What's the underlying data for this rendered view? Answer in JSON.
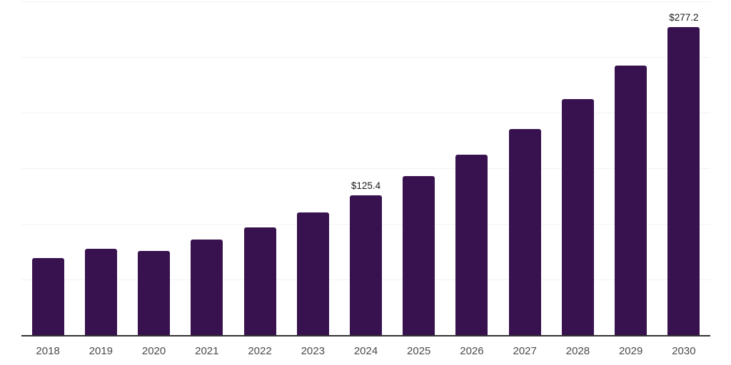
{
  "chart_data": {
    "type": "bar",
    "title": "",
    "categories": [
      "2018",
      "2019",
      "2020",
      "2021",
      "2022",
      "2023",
      "2024",
      "2025",
      "2026",
      "2027",
      "2028",
      "2029",
      "2030"
    ],
    "values": [
      69.3,
      77.3,
      75.6,
      85.6,
      97.0,
      110.0,
      125.4,
      143.0,
      162.5,
      185.0,
      212.0,
      242.1,
      277.2
    ],
    "data_labels": {
      "2024": "$125.4",
      "2030": "$277.2"
    },
    "xlabel": "",
    "ylabel": "",
    "ylim": [
      0,
      300
    ],
    "gridline_step": 50,
    "grid": true,
    "legend": false,
    "y_tick_labels_visible": false,
    "colors": {
      "bar": "#38124E",
      "axis_line": "#333333",
      "gridline": "#f2f2f2",
      "year_label": "#4a4a4a",
      "data_label": "#1a1a1a",
      "background": "#ffffff"
    }
  }
}
